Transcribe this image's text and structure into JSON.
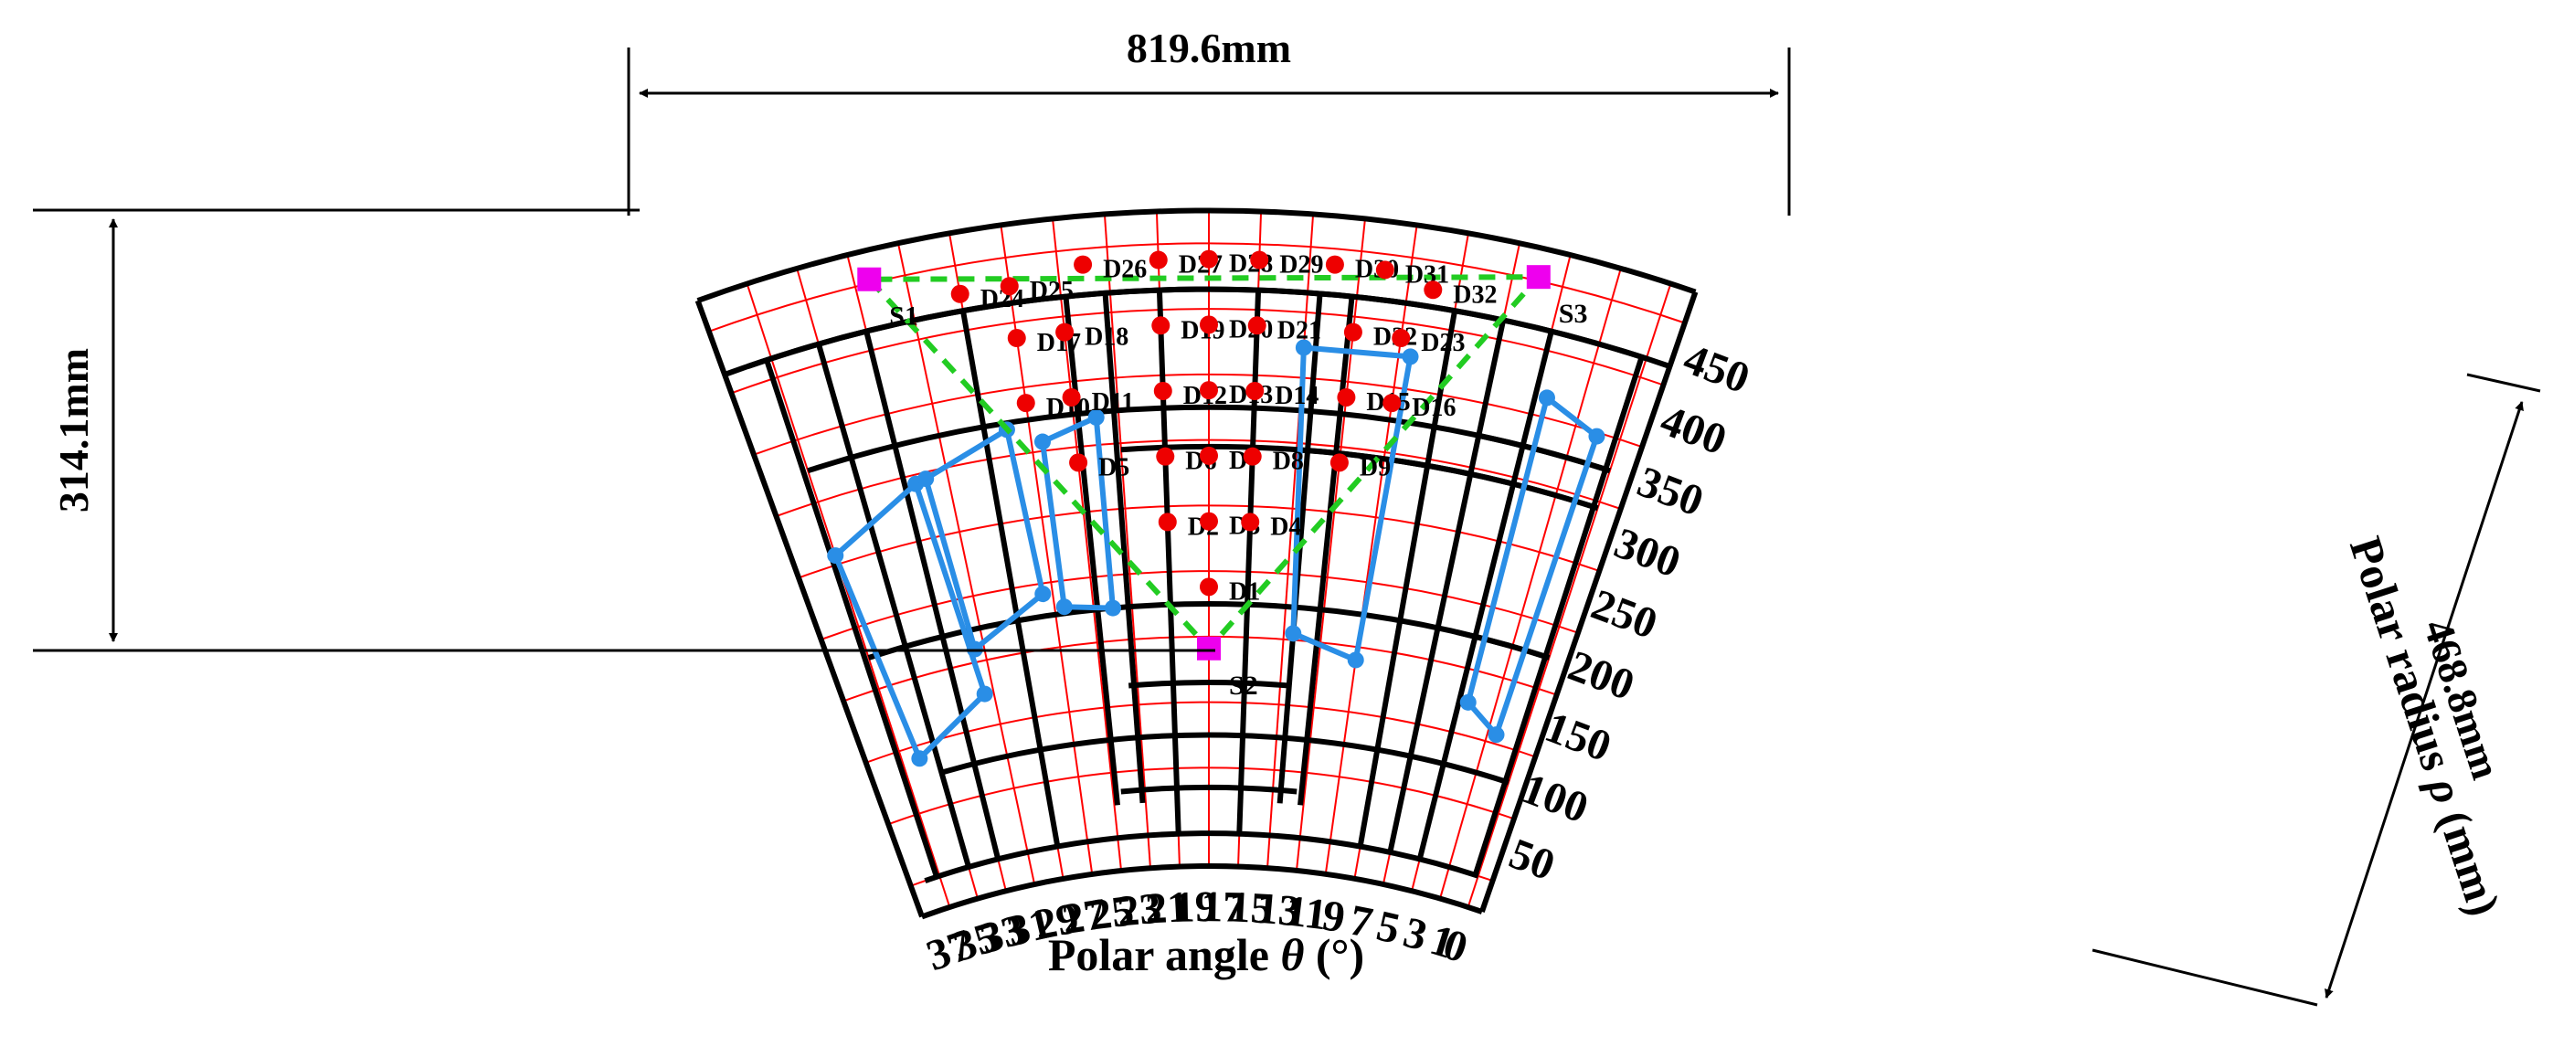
{
  "dimensions": {
    "width": "819.6mm",
    "height": "314.1mm",
    "radial": "468.8mm"
  },
  "axes": {
    "angle_title_prefix": "Polar angle ",
    "angle_symbol": "θ",
    "angle_unit": " (°)",
    "radius_title_prefix": "Polar radius ",
    "radius_symbol": "ρ",
    "radius_unit": " (mm)",
    "angle_ticks": [
      "37",
      "35",
      "33",
      "31",
      "29",
      "27",
      "25",
      "23",
      "21",
      "19",
      "17",
      "15",
      "13",
      "11",
      "9",
      "7",
      "5",
      "3",
      "1",
      "0"
    ],
    "radius_ticks": [
      "50",
      "100",
      "150",
      "200",
      "250",
      "300",
      "350",
      "400",
      "450"
    ]
  },
  "sensors": [
    {
      "name": "S1",
      "theta": 31.4,
      "rho": 478
    },
    {
      "name": "S2",
      "theta": 18.0,
      "rho": 166
    },
    {
      "name": "S3",
      "theta": 5.0,
      "rho": 478
    }
  ],
  "points": [
    {
      "name": "D1",
      "theta": 18.0,
      "rho": 213
    },
    {
      "name": "D2",
      "theta": 20.0,
      "rho": 263
    },
    {
      "name": "D3",
      "theta": 18.0,
      "rho": 263
    },
    {
      "name": "D4",
      "theta": 16.0,
      "rho": 263
    },
    {
      "name": "D5",
      "theta": 24.0,
      "rho": 313
    },
    {
      "name": "D6",
      "theta": 20.0,
      "rho": 313
    },
    {
      "name": "D7",
      "theta": 18.0,
      "rho": 313
    },
    {
      "name": "D8",
      "theta": 16.0,
      "rho": 313
    },
    {
      "name": "D9",
      "theta": 12.0,
      "rho": 313
    },
    {
      "name": "D10",
      "theta": 26.0,
      "rho": 363
    },
    {
      "name": "D11",
      "theta": 24.0,
      "rho": 363
    },
    {
      "name": "D12",
      "theta": 20.0,
      "rho": 363
    },
    {
      "name": "D13",
      "theta": 18.0,
      "rho": 363
    },
    {
      "name": "D14",
      "theta": 16.0,
      "rho": 363
    },
    {
      "name": "D15",
      "theta": 12.0,
      "rho": 363
    },
    {
      "name": "D16",
      "theta": 10.0,
      "rho": 363
    },
    {
      "name": "D17",
      "theta": 26.0,
      "rho": 413
    },
    {
      "name": "D18",
      "theta": 24.0,
      "rho": 413
    },
    {
      "name": "D19",
      "theta": 20.0,
      "rho": 413
    },
    {
      "name": "D20",
      "theta": 18.0,
      "rho": 413
    },
    {
      "name": "D21",
      "theta": 16.0,
      "rho": 413
    },
    {
      "name": "D22",
      "theta": 12.0,
      "rho": 413
    },
    {
      "name": "D23",
      "theta": 10.0,
      "rho": 413
    },
    {
      "name": "D24",
      "theta": 28.0,
      "rho": 453
    },
    {
      "name": "D25",
      "theta": 26.0,
      "rho": 453
    },
    {
      "name": "D26",
      "theta": 23.0,
      "rho": 463
    },
    {
      "name": "D27",
      "theta": 20.0,
      "rho": 463
    },
    {
      "name": "D28",
      "theta": 18.0,
      "rho": 463
    },
    {
      "name": "D29",
      "theta": 16.0,
      "rho": 463
    },
    {
      "name": "D30",
      "theta": 13.0,
      "rho": 463
    },
    {
      "name": "D31",
      "theta": 11.0,
      "rho": 463
    },
    {
      "name": "D32",
      "theta": 9.0,
      "rho": 453
    }
  ],
  "colors": {
    "grid": "#ff0000",
    "frame": "#000000",
    "triangle": "#22cc22",
    "sensor": "#ee00ee",
    "point": "#ee0000",
    "rect": "#2a8ee6"
  }
}
